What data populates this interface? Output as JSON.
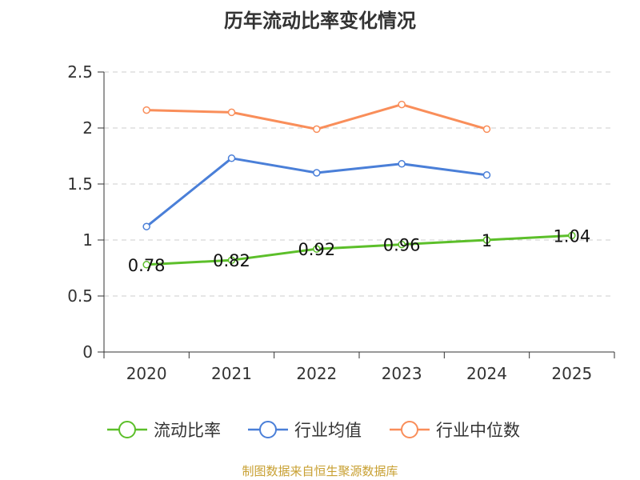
{
  "chart_data": {
    "type": "line",
    "title": "历年流动比率变化情况",
    "categories": [
      "2020",
      "2021",
      "2022",
      "2023",
      "2024",
      "2025"
    ],
    "ylim": [
      0,
      2.5
    ],
    "yticks": [
      "0",
      "0.5",
      "1",
      "1.5",
      "2",
      "2.5"
    ],
    "grid": true,
    "legend_position": "bottom",
    "series": [
      {
        "name": "流动比率",
        "color": "#5cbf2a",
        "values": [
          0.78,
          0.82,
          0.92,
          0.96,
          1.0,
          1.04
        ],
        "labels": [
          "0.78",
          "0.82",
          "0.92",
          "0.96",
          "1",
          "1.04"
        ]
      },
      {
        "name": "行业均值",
        "color": "#4a7fd8",
        "values": [
          1.12,
          1.73,
          1.6,
          1.68,
          1.58,
          null
        ]
      },
      {
        "name": "行业中位数",
        "color": "#f98e5a",
        "values": [
          2.16,
          2.14,
          1.99,
          2.21,
          1.99,
          null
        ]
      }
    ]
  },
  "source": {
    "text": "制图数据来自恒生聚源数据库",
    "color": "#c8a032"
  }
}
